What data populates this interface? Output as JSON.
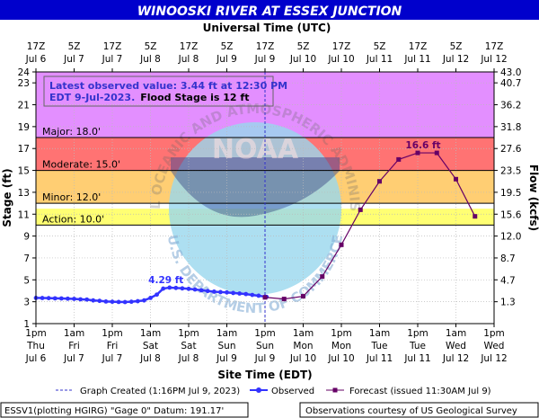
{
  "chart_data": {
    "type": "line",
    "title": "WINOOSKI RIVER AT ESSEX JUNCTION",
    "top_axis_title": "Universal Time (UTC)",
    "x_axis_title": "Site Time (EDT)",
    "y_left_title": "Stage (ft)",
    "y_right_title": "Flow (kcfs)",
    "ylim": [
      1,
      24
    ],
    "y_left_ticks": [
      1,
      3,
      5,
      7,
      9,
      11,
      13,
      15,
      17,
      19,
      21,
      23,
      24
    ],
    "y_right_ticks": [
      {
        "stage": 3,
        "label": "1.3"
      },
      {
        "stage": 5,
        "label": "4.7"
      },
      {
        "stage": 7,
        "label": "8.7"
      },
      {
        "stage": 9,
        "label": "12.0"
      },
      {
        "stage": 11,
        "label": "15.6"
      },
      {
        "stage": 13,
        "label": "19.5"
      },
      {
        "stage": 15,
        "label": "23.5"
      },
      {
        "stage": 17,
        "label": "27.6"
      },
      {
        "stage": 19,
        "label": "31.8"
      },
      {
        "stage": 21,
        "label": "36.2"
      },
      {
        "stage": 23,
        "label": "40.7"
      },
      {
        "stage": 24,
        "label": "43.0"
      }
    ],
    "x_ticks_bottom": [
      {
        "time": "1pm",
        "day": "Thu",
        "date": "Jul 6"
      },
      {
        "time": "1am",
        "day": "Fri",
        "date": "Jul 7"
      },
      {
        "time": "1pm",
        "day": "Fri",
        "date": "Jul 7"
      },
      {
        "time": "1am",
        "day": "Sat",
        "date": "Jul 8"
      },
      {
        "time": "1pm",
        "day": "Sat",
        "date": "Jul 8"
      },
      {
        "time": "1am",
        "day": "Sun",
        "date": "Jul 9"
      },
      {
        "time": "1pm",
        "day": "Sun",
        "date": "Jul 9"
      },
      {
        "time": "1am",
        "day": "Mon",
        "date": "Jul 10"
      },
      {
        "time": "1pm",
        "day": "Mon",
        "date": "Jul 10"
      },
      {
        "time": "1am",
        "day": "Tue",
        "date": "Jul 11"
      },
      {
        "time": "1pm",
        "day": "Tue",
        "date": "Jul 11"
      },
      {
        "time": "1am",
        "day": "Wed",
        "date": "Jul 12"
      },
      {
        "time": "1pm",
        "day": "Wed",
        "date": "Jul 12"
      }
    ],
    "x_ticks_top": [
      {
        "time": "17Z",
        "date": "Jul 6"
      },
      {
        "time": "5Z",
        "date": "Jul 7"
      },
      {
        "time": "17Z",
        "date": "Jul 7"
      },
      {
        "time": "5Z",
        "date": "Jul 8"
      },
      {
        "time": "17Z",
        "date": "Jul 8"
      },
      {
        "time": "5Z",
        "date": "Jul 9"
      },
      {
        "time": "17Z",
        "date": "Jul 9"
      },
      {
        "time": "5Z",
        "date": "Jul 10"
      },
      {
        "time": "17Z",
        "date": "Jul 10"
      },
      {
        "time": "5Z",
        "date": "Jul 11"
      },
      {
        "time": "17Z",
        "date": "Jul 11"
      },
      {
        "time": "5Z",
        "date": "Jul 12"
      },
      {
        "time": "17Z",
        "date": "Jul 12"
      }
    ],
    "flood_categories": [
      {
        "name": "Action",
        "label": "Action: 10.0'",
        "from": 10,
        "to": 11.5,
        "color": "#ffff00"
      },
      {
        "name": "Minor",
        "label": "Minor: 12.0'",
        "from": 12,
        "to": 15,
        "color": "#ffa500"
      },
      {
        "name": "Moderate",
        "label": "Moderate: 15.0'",
        "from": 15,
        "to": 18,
        "color": "#ff0000"
      },
      {
        "name": "Major",
        "label": "Major: 18.0'",
        "from": 18,
        "to": 24,
        "color": "#cc33ff"
      }
    ],
    "observed": {
      "name": "Observed",
      "color": "#3333ff",
      "hours": [
        0,
        2,
        4,
        6,
        8,
        10,
        12,
        14,
        16,
        18,
        20,
        22,
        24,
        26,
        28,
        30,
        32,
        34,
        36,
        38,
        40,
        42,
        44,
        46,
        48,
        50,
        52,
        54,
        56,
        58,
        60,
        62,
        64,
        66,
        68,
        70,
        72,
        72.5
      ],
      "stage": [
        3.35,
        3.34,
        3.33,
        3.31,
        3.3,
        3.28,
        3.26,
        3.22,
        3.2,
        3.12,
        3.08,
        3.02,
        3.0,
        2.98,
        2.97,
        3.0,
        3.05,
        3.12,
        3.35,
        3.65,
        4.2,
        4.29,
        4.26,
        4.22,
        4.18,
        4.12,
        4.05,
        3.98,
        3.92,
        3.88,
        3.85,
        3.8,
        3.75,
        3.7,
        3.62,
        3.55,
        3.47,
        3.44
      ]
    },
    "forecast": {
      "name": "Forecast (issued 11:30AM Jul 9)",
      "color": "#660066",
      "hours": [
        72,
        78,
        84,
        90,
        96,
        102,
        108,
        114,
        120,
        126,
        132,
        138
      ],
      "stage": [
        3.4,
        3.25,
        3.5,
        5.3,
        8.2,
        11.4,
        14.0,
        16.0,
        16.6,
        16.6,
        14.2,
        10.8
      ]
    },
    "peak_observed_label": "4.29 ft",
    "peak_forecast_label": "16.6 ft",
    "graph_created_hour": 72,
    "x_range_hours": [
      0,
      144
    ]
  },
  "info_box": {
    "line1": "Latest observed value: 3.44 ft at 12:30 PM",
    "line2": "EDT 9-Jul-2023.",
    "line2b": "Flood Stage is 12 ft"
  },
  "watermark": {
    "arc_top": "NATIONAL OCEANIC AND ATMOSPHERIC ADMINISTRATION",
    "arc_bottom": "U.S. DEPARTMENT OF COMMERCE",
    "center": "NOAA"
  },
  "legend": {
    "graph_created": "Graph Created (1:16PM Jul 9, 2023)",
    "observed": "Observed",
    "forecast": "Forecast (issued 11:30AM Jul 9)"
  },
  "footer": {
    "left": "ESSV1(plotting HGIRG) \"Gage 0\" Datum: 191.17'",
    "right": "Observations courtesy of US Geological Survey"
  },
  "colors": {
    "title_bg": "#0000cc",
    "title_text": "#ffffff",
    "observed": "#3333ff",
    "forecast": "#660066",
    "created_line": "#3333cc"
  }
}
